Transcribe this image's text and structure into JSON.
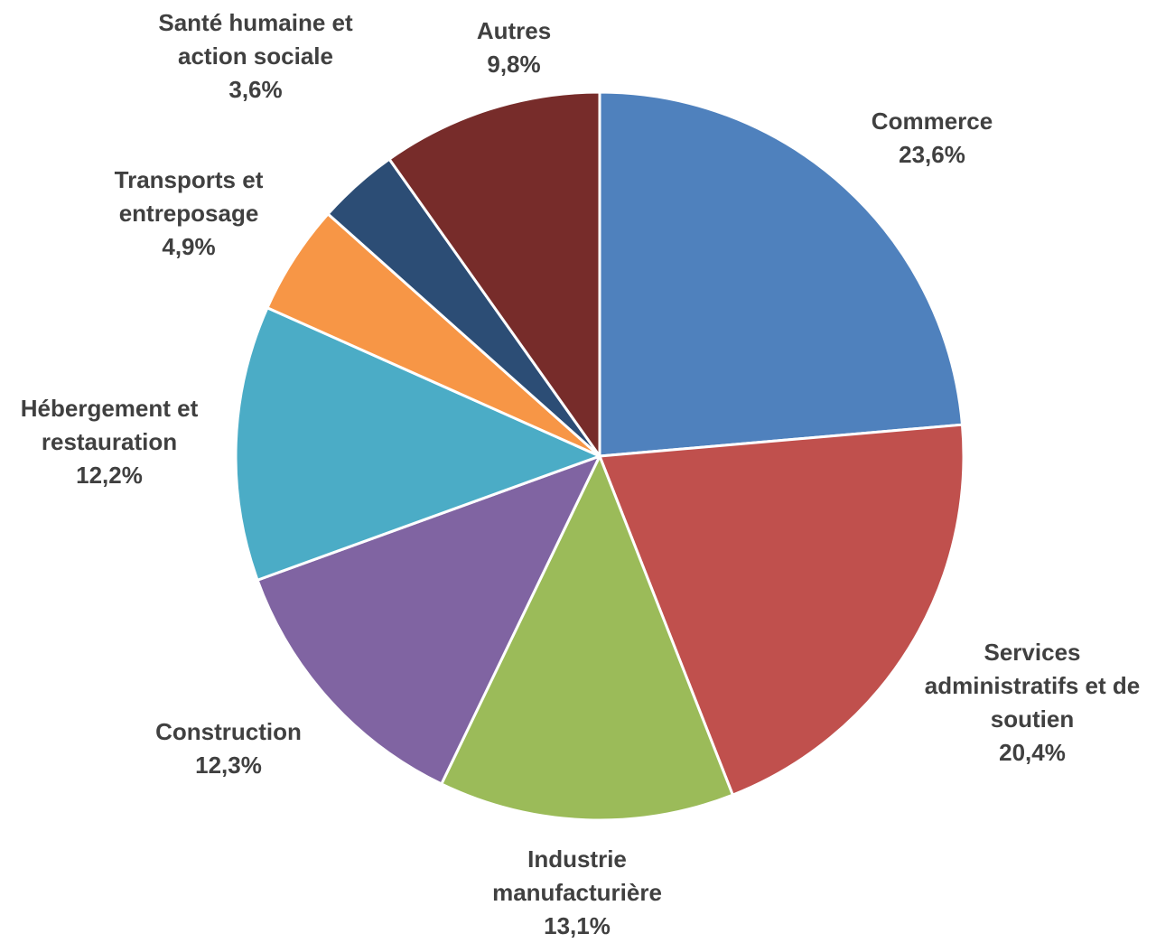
{
  "chart_data": {
    "type": "pie",
    "title": "",
    "start_angle_deg": 0,
    "direction": "clockwise",
    "slices": [
      {
        "label_lines": [
          "Commerce"
        ],
        "value": 23.6,
        "value_label": "23,6%",
        "color": "#4F81BD"
      },
      {
        "label_lines": [
          "Services",
          "administratifs et de",
          "soutien"
        ],
        "value": 20.4,
        "value_label": "20,4%",
        "color": "#C0504D"
      },
      {
        "label_lines": [
          "Industrie",
          "manufacturière"
        ],
        "value": 13.1,
        "value_label": "13,1%",
        "color": "#9BBB59"
      },
      {
        "label_lines": [
          "Construction"
        ],
        "value": 12.3,
        "value_label": "12,3%",
        "color": "#8064A2"
      },
      {
        "label_lines": [
          "Hébergement et",
          "restauration"
        ],
        "value": 12.2,
        "value_label": "12,2%",
        "color": "#4BACC6"
      },
      {
        "label_lines": [
          "Transports et",
          "entreposage"
        ],
        "value": 4.9,
        "value_label": "4,9%",
        "color": "#F79646"
      },
      {
        "label_lines": [
          "Santé humaine et",
          "action sociale"
        ],
        "value": 3.6,
        "value_label": "3,6%",
        "color": "#2C4D75"
      },
      {
        "label_lines": [
          "Autres"
        ],
        "value": 9.8,
        "value_label": "9,8%",
        "color": "#772C2A"
      }
    ],
    "legend": "none",
    "data_labels": "outside"
  }
}
